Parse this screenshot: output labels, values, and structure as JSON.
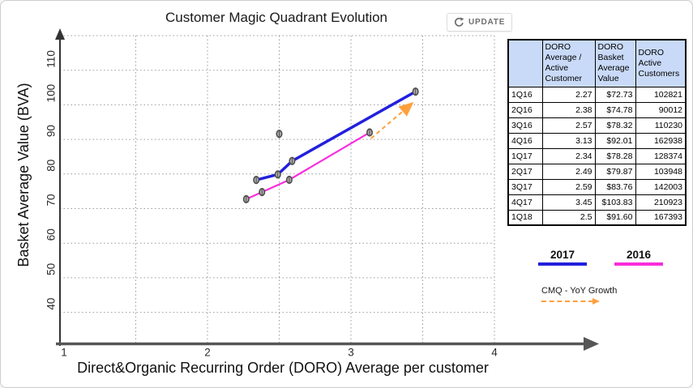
{
  "title": "Customer Magic Quadrant Evolution",
  "update_button": {
    "label": "UPDATE"
  },
  "chart_data": {
    "type": "scatter",
    "title": "Customer Magic Quadrant Evolution",
    "xlabel": "Direct&Organic Recurring Order (DORO) Average per customer",
    "ylabel": "Basket Average Value (BVA)",
    "xlim": [
      1,
      4.7
    ],
    "ylim": [
      30,
      120
    ],
    "x_ticks": [
      1,
      2,
      3,
      4
    ],
    "y_ticks": [
      40,
      50,
      60,
      70,
      80,
      90,
      100,
      110
    ],
    "x_gridlines": [
      1.5,
      2,
      2.5,
      3,
      3.5,
      4
    ],
    "y_gridlines": [
      40,
      50,
      60,
      70,
      80,
      90,
      100,
      110,
      120
    ],
    "grid": "dotted",
    "legend_position": "right",
    "series": [
      {
        "name": "2017",
        "color": "#2220dd",
        "line_width": 3.5,
        "points": [
          {
            "label": "1Q17",
            "x": 2.34,
            "y": 78.28
          },
          {
            "label": "2Q17",
            "x": 2.49,
            "y": 79.87
          },
          {
            "label": "3Q17",
            "x": 2.59,
            "y": 83.76
          },
          {
            "label": "4Q17",
            "x": 3.45,
            "y": 103.83
          }
        ]
      },
      {
        "name": "2016",
        "color": "#f92ddc",
        "line_width": 2.2,
        "points": [
          {
            "label": "1Q16",
            "x": 2.27,
            "y": 72.73
          },
          {
            "label": "2Q16",
            "x": 2.38,
            "y": 74.78
          },
          {
            "label": "3Q16",
            "x": 2.57,
            "y": 78.32
          },
          {
            "label": "4Q16",
            "x": 3.13,
            "y": 92.01
          }
        ]
      },
      {
        "name": "1Q18",
        "color": null,
        "line_width": 0,
        "points": [
          {
            "label": "1Q18",
            "x": 2.5,
            "y": 91.6
          }
        ]
      }
    ],
    "growth_arrow": {
      "name": "CMQ - YoY Growth",
      "color": "#ffa03c",
      "from": {
        "x": 3.14,
        "y": 90.3
      },
      "to": {
        "x": 3.42,
        "y": 100.2
      }
    }
  },
  "legend": {
    "items": [
      {
        "label": "2017",
        "color": "#2220dd",
        "style": "solid"
      },
      {
        "label": "2016",
        "color": "#f92ddc",
        "style": "solid"
      },
      {
        "label": "CMQ - YoY Growth",
        "color": "#ffa03c",
        "style": "dashed-arrow"
      }
    ]
  },
  "table": {
    "columns": [
      "",
      "DORO Average / Active Customer",
      "DORO Basket Average Value",
      "DORO Active Customers"
    ],
    "rows": [
      {
        "quarter": "1Q16",
        "doro_avg": "2.27",
        "basket_avg": "$72.73",
        "active_customers": "102821"
      },
      {
        "quarter": "2Q16",
        "doro_avg": "2.38",
        "basket_avg": "$74.78",
        "active_customers": "90012"
      },
      {
        "quarter": "3Q16",
        "doro_avg": "2.57",
        "basket_avg": "$78.32",
        "active_customers": "110230"
      },
      {
        "quarter": "4Q16",
        "doro_avg": "3.13",
        "basket_avg": "$92.01",
        "active_customers": "162938"
      },
      {
        "quarter": "1Q17",
        "doro_avg": "2.34",
        "basket_avg": "$78.28",
        "active_customers": "128374"
      },
      {
        "quarter": "2Q17",
        "doro_avg": "2.49",
        "basket_avg": "$79.87",
        "active_customers": "103948"
      },
      {
        "quarter": "3Q17",
        "doro_avg": "2.59",
        "basket_avg": "$83.76",
        "active_customers": "142003"
      },
      {
        "quarter": "4Q17",
        "doro_avg": "3.45",
        "basket_avg": "$103.83",
        "active_customers": "210923"
      },
      {
        "quarter": "1Q18",
        "doro_avg": "2.5",
        "basket_avg": "$91.60",
        "active_customers": "167393"
      }
    ]
  },
  "colors": {
    "series_2017": "#2220dd",
    "series_2016": "#f92ddc",
    "growth_arrow": "#ffa03c",
    "marker_fill": "#b0afae",
    "marker_stroke": "#4f4d4c",
    "gridline": "#9a9a9a",
    "x_axis": "#565656",
    "y_axis": "#333333",
    "table_header_bg": "#c9daf8"
  }
}
